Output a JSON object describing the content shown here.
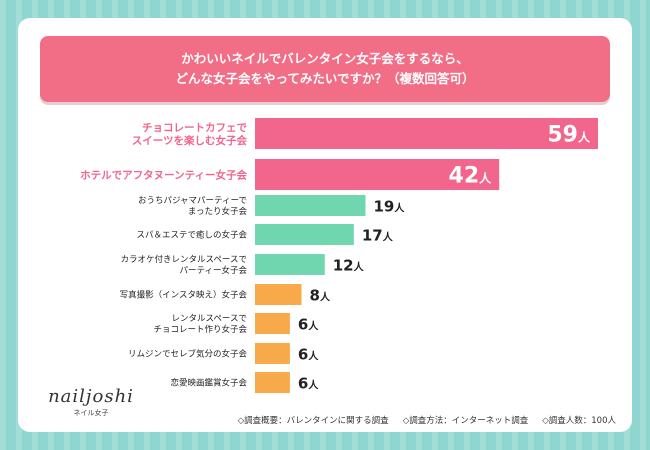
{
  "title": {
    "line1": "かわいいネイルでバレンタイン女子会をするなら、",
    "line2": "どんな女子会をやってみたいですか？（複数回答可）"
  },
  "colors": {
    "background": "#8fd6d0",
    "title_bg": "#f26d86",
    "pink": "#f2658c",
    "green": "#6fd6b0",
    "orange": "#f8a94a"
  },
  "chart_data": {
    "type": "bar",
    "orientation": "horizontal",
    "unit": "人",
    "xlim": [
      0,
      60
    ],
    "categories": [
      "チョコレートカフェで\nスイーツを楽しむ女子会",
      "ホテルでアフタヌーンティー女子会",
      "おうちパジャマパーティーで\nまったり女子会",
      "スパ＆エステで癒しの女子会",
      "カラオケ付きレンタルスペースで\nパーティー女子会",
      "写真撮影（インスタ映え）女子会",
      "レンタルスペースで\nチョコレート作り女子会",
      "リムジンでセレブ気分の女子会",
      "恋愛映画鑑賞女子会"
    ],
    "values": [
      59,
      42,
      19,
      17,
      12,
      8,
      6,
      6,
      6
    ],
    "bar_colors": [
      "pink",
      "pink",
      "green",
      "green",
      "green",
      "orange",
      "orange",
      "orange",
      "orange"
    ],
    "highlighted": [
      true,
      true,
      false,
      false,
      false,
      false,
      false,
      false,
      false
    ]
  },
  "logo": {
    "main": "nailjoshi",
    "sub": "ネイル女子"
  },
  "footnotes": [
    "◇調査概要：バレンタインに関する調査",
    "◇調査方法：インターネット調査",
    "◇調査人数：100人"
  ]
}
